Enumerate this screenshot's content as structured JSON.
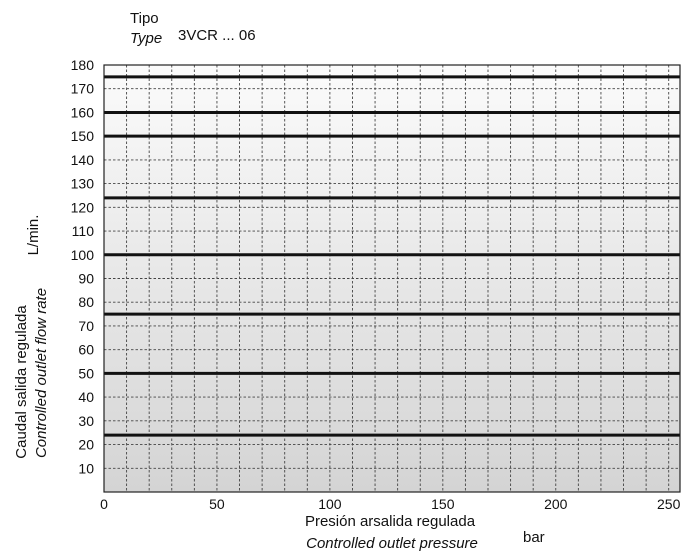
{
  "header": {
    "type_label_es": "Tipo",
    "type_label_en": "Type",
    "model": "3VCR ... 06"
  },
  "chart_data": {
    "type": "line",
    "title": "",
    "xlabel_es": "Presión arsalida regulada",
    "xlabel_en": "Controlled outlet pressure",
    "x_unit": "bar",
    "ylabel_es": "Caudal salida regulada",
    "ylabel_en": "Controlled outlet flow rate",
    "y_unit": "L/min.",
    "xlim": [
      0,
      255
    ],
    "ylim": [
      0,
      180
    ],
    "x_ticks": [
      0,
      50,
      100,
      150,
      200,
      250
    ],
    "x_tick_labels": [
      "0",
      "50",
      "100",
      "150",
      "200",
      "250"
    ],
    "y_ticks": [
      10,
      20,
      30,
      40,
      50,
      60,
      70,
      80,
      90,
      100,
      110,
      120,
      130,
      140,
      150,
      160,
      170,
      180
    ],
    "y_tick_labels": [
      "10",
      "20",
      "30",
      "40",
      "50",
      "60",
      "70",
      "80",
      "90",
      "100",
      "110",
      "120",
      "130",
      "140",
      "150",
      "160",
      "170",
      "180"
    ],
    "x_minor_step": 10,
    "y_minor_step": 10,
    "grid": true,
    "curves": [
      {
        "x": [
          0,
          255
        ],
        "y": [
          24,
          24
        ]
      },
      {
        "x": [
          0,
          255
        ],
        "y": [
          50,
          50
        ]
      },
      {
        "x": [
          0,
          255
        ],
        "y": [
          75,
          75
        ]
      },
      {
        "x": [
          0,
          255
        ],
        "y": [
          100,
          100
        ]
      },
      {
        "x": [
          0,
          255
        ],
        "y": [
          124,
          124
        ]
      },
      {
        "x": [
          0,
          255
        ],
        "y": [
          150,
          150
        ]
      },
      {
        "x": [
          0,
          255
        ],
        "y": [
          160,
          160
        ]
      },
      {
        "x": [
          0,
          255
        ],
        "y": [
          175,
          175
        ]
      }
    ],
    "colors": {
      "curve": "#111111",
      "grid": "#444444",
      "background_top": "#fbfbfb",
      "background_bottom": "#d4d4d4"
    }
  }
}
